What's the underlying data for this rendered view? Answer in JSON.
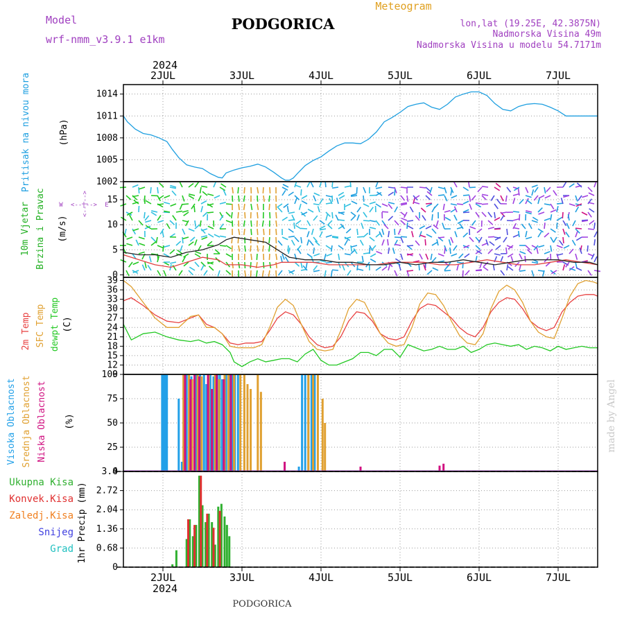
{
  "header": {
    "model_label": "Model",
    "model_name": "wrf-nmm_v3.9.1 e1km",
    "title": "PODGORICA",
    "meteogram": "Meteogram",
    "lonlat": "lon,lat (19.25E, 42.3875N)",
    "elevation": "Nadmorska Visina 49m",
    "model_elevation": "Nadmorska Visina u modelu 54.7171m",
    "footer": "PODGORICA",
    "watermark": "made by Angel"
  },
  "colors": {
    "pressure": "#1e9fe0",
    "temp2m": "#e84040",
    "sfc": "#e0a030",
    "dewpt": "#22c822",
    "high_cloud": "#22a0e8",
    "mid_cloud": "#e0a030",
    "low_cloud": "#d01080",
    "total_precip": "#30b030",
    "conv_precip": "#e03030",
    "frz_precip": "#f08020",
    "snow": "#4040e0",
    "hail": "#20c0c0",
    "purple_text": "#a040c0",
    "orange_text": "#e0a020"
  },
  "chart_data": [
    {
      "type": "line",
      "title": "",
      "xlabel": "",
      "ylabel": "Pritisak na nivou mora (hPa)",
      "ylabel_parts": [
        "Pritisak na nivou mora",
        "(hPa)"
      ],
      "x_ticks": [
        "2JUL",
        "3JUL",
        "4JUL",
        "5JUL",
        "6JUL",
        "7JUL"
      ],
      "x_year": "2024",
      "x_range_days": [
        1.5,
        7.5
      ],
      "yticks": [
        "1002",
        "1005",
        "1008",
        "1011",
        "1014"
      ],
      "ylim": [
        1002,
        1015.3
      ],
      "grid": true,
      "series": [
        {
          "color": "pressure",
          "x": [
            1.5,
            1.55,
            1.65,
            1.75,
            1.85,
            1.95,
            2.05,
            2.12,
            2.2,
            2.3,
            2.4,
            2.5,
            2.6,
            2.7,
            2.75,
            2.8,
            2.9,
            3.0,
            3.1,
            3.2,
            3.3,
            3.4,
            3.5,
            3.55,
            3.6,
            3.65,
            3.7,
            3.8,
            3.9,
            4.0,
            4.1,
            4.2,
            4.3,
            4.4,
            4.5,
            4.6,
            4.7,
            4.8,
            4.9,
            5.0,
            5.1,
            5.2,
            5.3,
            5.4,
            5.5,
            5.6,
            5.7,
            5.8,
            5.9,
            6.0,
            6.1,
            6.2,
            6.3,
            6.4,
            6.5,
            6.6,
            6.7,
            6.8,
            6.9,
            7.0,
            7.1,
            7.2,
            7.3,
            7.4,
            7.5
          ],
          "y": [
            1011.0,
            1010.2,
            1009.2,
            1008.6,
            1008.4,
            1008.0,
            1007.5,
            1006.4,
            1005.3,
            1004.3,
            1004.0,
            1003.8,
            1003.1,
            1002.6,
            1002.5,
            1003.2,
            1003.6,
            1003.9,
            1004.1,
            1004.4,
            1004.0,
            1003.3,
            1002.5,
            1002.2,
            1002.2,
            1002.5,
            1003.1,
            1004.2,
            1004.9,
            1005.4,
            1006.2,
            1006.9,
            1007.3,
            1007.3,
            1007.2,
            1007.8,
            1008.8,
            1010.2,
            1010.8,
            1011.5,
            1012.3,
            1012.6,
            1012.8,
            1012.2,
            1011.9,
            1012.6,
            1013.6,
            1014.0,
            1014.3,
            1014.3,
            1013.8,
            1012.7,
            1011.9,
            1011.7,
            1012.3,
            1012.6,
            1012.7,
            1012.6,
            1012.2,
            1011.7,
            1011.0,
            1011.0,
            1011.0,
            1011.0,
            1011.0
          ]
        }
      ]
    },
    {
      "type": "line",
      "title": "",
      "ylabel": "10m Vjetar Brzina i Pravac (m/s)",
      "ylabel_parts": [
        "10m Vjetar",
        "Brzina i Pravac",
        "(m/s)"
      ],
      "compass": [
        "W",
        "E"
      ],
      "yticks": [
        "0",
        "5",
        "10",
        "15"
      ],
      "ylim": [
        -0.5,
        18.6
      ],
      "grid": true,
      "series": [
        {
          "color": "#e04040",
          "x": [
            1.5,
            1.7,
            1.9,
            2.1,
            2.3,
            2.5,
            2.7,
            2.8,
            3.0,
            3.2,
            3.4,
            3.5,
            3.7,
            3.9,
            4.1,
            4.3,
            4.5,
            4.7,
            4.9,
            5.1,
            5.3,
            5.5,
            5.7,
            5.9,
            6.1,
            6.3,
            6.5,
            6.7,
            6.9,
            7.1,
            7.3,
            7.5
          ],
          "y": [
            4,
            3,
            2,
            1.5,
            2.5,
            3.5,
            3,
            2,
            2,
            1.5,
            2,
            2.5,
            2.5,
            2.5,
            2,
            2,
            2,
            2,
            2.5,
            2.5,
            2.5,
            2,
            2,
            2.5,
            3,
            2.5,
            2,
            2,
            2.5,
            3,
            2.5,
            2
          ]
        },
        {
          "color": "#222222",
          "x": [
            1.5,
            1.7,
            1.9,
            2.1,
            2.3,
            2.5,
            2.7,
            2.8,
            2.9,
            3.1,
            3.3,
            3.45,
            3.6,
            3.8,
            4.0,
            4.2,
            4.4,
            4.6,
            4.8,
            5.0,
            5.2,
            5.4,
            5.6,
            5.8,
            6.0,
            6.2,
            6.4,
            6.6,
            6.8,
            7.0,
            7.2,
            7.4,
            7.5
          ],
          "y": [
            4.5,
            4,
            4,
            3.5,
            4.5,
            5,
            6,
            7,
            7.5,
            7,
            6.5,
            5,
            3.5,
            3,
            3,
            2.5,
            2.5,
            2,
            2,
            2.5,
            2,
            2.5,
            2.5,
            3,
            2.5,
            2,
            2.5,
            3,
            3,
            3,
            2.5,
            2.5,
            2
          ]
        }
      ]
    },
    {
      "type": "line",
      "title": "",
      "ylabel": "2m Temp SFC Temp dewpt Temp (C)",
      "ylabel_parts": [
        "2m Temp",
        "SFC Temp",
        "dewpt Temp",
        "(C)"
      ],
      "yticks": [
        "9",
        "12",
        "15",
        "18",
        "21",
        "24",
        "27",
        "30",
        "33",
        "36",
        "39"
      ],
      "ylim": [
        9,
        40
      ],
      "grid": true,
      "series": [
        {
          "name": "2m Temp",
          "color": "temp2m",
          "x": [
            1.5,
            1.6,
            1.75,
            1.9,
            2.05,
            2.2,
            2.35,
            2.45,
            2.55,
            2.65,
            2.75,
            2.85,
            2.95,
            3.05,
            3.15,
            3.25,
            3.35,
            3.45,
            3.55,
            3.65,
            3.75,
            3.85,
            3.95,
            4.05,
            4.15,
            4.25,
            4.35,
            4.45,
            4.55,
            4.65,
            4.75,
            4.85,
            4.95,
            5.05,
            5.15,
            5.25,
            5.35,
            5.45,
            5.55,
            5.65,
            5.75,
            5.85,
            5.95,
            6.05,
            6.15,
            6.25,
            6.35,
            6.45,
            6.55,
            6.65,
            6.75,
            6.85,
            6.95,
            7.05,
            7.15,
            7.25,
            7.35,
            7.45,
            7.5
          ],
          "y": [
            32.5,
            33.5,
            31,
            28,
            26,
            25.5,
            27,
            28,
            25,
            24,
            22,
            19,
            18.5,
            19,
            19,
            19.5,
            23,
            27,
            29,
            28,
            25,
            21,
            18.5,
            17.5,
            18,
            21,
            26,
            29,
            28.5,
            26,
            22,
            20.5,
            20,
            21,
            26,
            30,
            31.5,
            31,
            29,
            27,
            24,
            22,
            21,
            24,
            29,
            32,
            33.5,
            33,
            30,
            26,
            24,
            23,
            24,
            29,
            32,
            34,
            34.5,
            34.5,
            34
          ]
        },
        {
          "name": "SFC Temp",
          "color": "sfc",
          "x": [
            1.5,
            1.6,
            1.75,
            1.9,
            2.05,
            2.2,
            2.35,
            2.45,
            2.55,
            2.65,
            2.75,
            2.85,
            2.95,
            3.05,
            3.15,
            3.25,
            3.35,
            3.45,
            3.55,
            3.65,
            3.75,
            3.85,
            3.95,
            4.05,
            4.15,
            4.25,
            4.35,
            4.45,
            4.55,
            4.65,
            4.75,
            4.85,
            4.95,
            5.05,
            5.15,
            5.25,
            5.35,
            5.45,
            5.55,
            5.65,
            5.75,
            5.85,
            5.95,
            6.05,
            6.15,
            6.25,
            6.35,
            6.45,
            6.55,
            6.65,
            6.75,
            6.85,
            6.95,
            7.05,
            7.15,
            7.25,
            7.35,
            7.45,
            7.5
          ],
          "y": [
            39,
            37,
            32,
            27,
            24,
            24,
            27.5,
            28,
            24,
            24,
            22,
            18,
            17.5,
            17.5,
            17.5,
            18.5,
            24,
            30.5,
            33,
            31,
            25,
            19.5,
            17,
            16.5,
            17,
            23,
            30,
            33,
            32,
            27,
            22,
            19,
            18,
            18.5,
            24,
            31.5,
            35,
            34.5,
            31,
            26,
            21.5,
            19,
            18.5,
            22,
            30,
            35.5,
            37.5,
            36,
            32,
            26,
            22.5,
            21,
            20.5,
            27,
            34,
            38,
            39,
            38.5,
            38
          ]
        },
        {
          "name": "dewpt Temp",
          "color": "dewpt",
          "x": [
            1.5,
            1.6,
            1.75,
            1.9,
            2.05,
            2.2,
            2.35,
            2.45,
            2.55,
            2.65,
            2.75,
            2.85,
            2.9,
            3.0,
            3.1,
            3.2,
            3.3,
            3.4,
            3.5,
            3.6,
            3.7,
            3.8,
            3.9,
            4.0,
            4.1,
            4.2,
            4.3,
            4.4,
            4.5,
            4.6,
            4.7,
            4.8,
            4.9,
            5.0,
            5.1,
            5.2,
            5.3,
            5.4,
            5.5,
            5.6,
            5.7,
            5.8,
            5.9,
            6.0,
            6.1,
            6.2,
            6.3,
            6.4,
            6.5,
            6.6,
            6.7,
            6.8,
            6.9,
            7.0,
            7.1,
            7.2,
            7.3,
            7.4,
            7.5
          ],
          "y": [
            25,
            20,
            22,
            22.5,
            21,
            20,
            19.5,
            20,
            19,
            19.5,
            18.5,
            16,
            13,
            11.5,
            13,
            14,
            13,
            13.5,
            14,
            14,
            13,
            15.5,
            17,
            13.5,
            12,
            12,
            13,
            14,
            16,
            16,
            15,
            17,
            17,
            14.5,
            18.5,
            17.5,
            16.5,
            17,
            18,
            17,
            17,
            18,
            16,
            17,
            18.5,
            19,
            18.5,
            18,
            18.5,
            17,
            18,
            17.5,
            16.5,
            18,
            17,
            17.5,
            18,
            17.5,
            17.5
          ]
        }
      ]
    },
    {
      "type": "bar",
      "title": "",
      "ylabel": "Visoka Oblacnost Srednja Oblacnost Niska Oblacnost (%)",
      "ylabel_parts": [
        "Visoka Oblacnost",
        "Srednja Oblacnost",
        "Niska Oblacnost",
        "(%)"
      ],
      "yticks": [
        "0",
        "25",
        "50",
        "75",
        "100"
      ],
      "ylim": [
        0,
        100
      ],
      "grid": true,
      "series": [
        {
          "name": "Visoka Oblacnost",
          "color": "high_cloud",
          "x": [
            1.99,
            2.01,
            2.03,
            2.05,
            2.2,
            2.24,
            2.3,
            2.36,
            2.42,
            2.47,
            2.52,
            2.55,
            2.6,
            2.64,
            2.69,
            2.72,
            2.75,
            2.8,
            2.84,
            2.88,
            2.91,
            2.95,
            3.72,
            3.76,
            3.8,
            3.84,
            3.88,
            3.92
          ],
          "y": [
            100,
            100,
            100,
            100,
            75,
            10,
            100,
            98,
            100,
            100,
            100,
            90,
            100,
            98,
            100,
            100,
            95,
            100,
            100,
            100,
            100,
            100,
            5,
            100,
            100,
            100,
            100,
            100
          ]
        },
        {
          "name": "Srednja Oblacnost",
          "color": "mid_cloud",
          "x": [
            2.26,
            2.33,
            2.37,
            2.44,
            2.49,
            2.58,
            2.66,
            2.71,
            2.78,
            2.83,
            2.9,
            2.98,
            3.03,
            3.07,
            3.11,
            3.2,
            3.24,
            3.84,
            3.9,
            3.96,
            4.02,
            4.05
          ],
          "y": [
            100,
            100,
            95,
            100,
            98,
            100,
            100,
            95,
            100,
            100,
            100,
            100,
            100,
            90,
            85,
            100,
            82,
            100,
            100,
            100,
            75,
            50
          ]
        },
        {
          "name": "Niska Oblacnost",
          "color": "low_cloud",
          "x": [
            2.28,
            2.35,
            2.4,
            2.46,
            2.57,
            2.62,
            2.68,
            2.77,
            2.86,
            3.54,
            4.5,
            5.5,
            5.55
          ],
          "y": [
            100,
            95,
            100,
            98,
            100,
            85,
            100,
            95,
            100,
            10,
            5,
            6,
            8
          ]
        }
      ]
    },
    {
      "type": "bar",
      "title": "",
      "ylabel": "1hr Precip (mm)",
      "yticks": [
        "0",
        "0.68",
        "1.36",
        "2.04",
        "2.72",
        "3.4"
      ],
      "ylim": [
        0,
        3.4
      ],
      "grid": true,
      "legend": [
        "Ukupna Kisa",
        "Konvek.Kisa",
        "Zaledj.Kisa",
        "Snijeg",
        "Grad"
      ],
      "series": [
        {
          "name": "Ukupna Kisa",
          "color": "total_precip",
          "x": [
            2.12,
            2.17,
            2.3,
            2.34,
            2.38,
            2.42,
            2.46,
            2.5,
            2.54,
            2.58,
            2.62,
            2.66,
            2.7,
            2.74,
            2.78,
            2.81,
            2.84
          ],
          "y": [
            0.1,
            0.6,
            1.0,
            1.7,
            1.1,
            1.5,
            3.25,
            2.2,
            1.6,
            1.9,
            1.6,
            0.8,
            2.15,
            2.25,
            1.8,
            1.5,
            1.1
          ]
        },
        {
          "name": "Konvek.Kisa",
          "color": "conv_precip",
          "x": [
            2.32,
            2.4,
            2.48,
            2.56,
            2.64,
            2.72
          ],
          "y": [
            1.7,
            1.5,
            3.25,
            1.9,
            1.4,
            2.0
          ]
        },
        {
          "name": "Zaledj.Kisa",
          "color": "frz_precip",
          "x": [],
          "y": []
        },
        {
          "name": "Snijeg",
          "color": "snow",
          "x": [],
          "y": []
        },
        {
          "name": "Grad",
          "color": "hail",
          "x": [],
          "y": []
        }
      ]
    }
  ]
}
